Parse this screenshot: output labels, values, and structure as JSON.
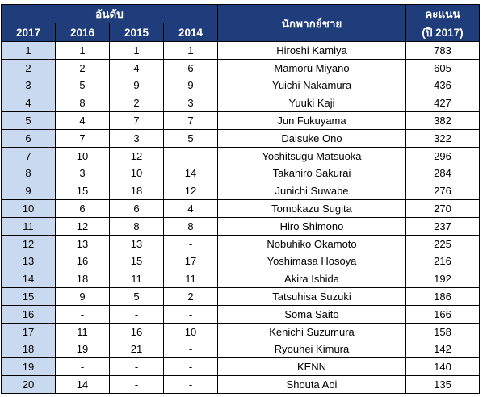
{
  "header": {
    "rank_group": "อันดับ",
    "voice_actor": "นักพากย์ชาย",
    "score_line1": "คะแนน",
    "score_line2": "(ปี 2017)",
    "years": [
      "2017",
      "2016",
      "2015",
      "2014"
    ]
  },
  "rows": [
    {
      "r2017": "1",
      "r2016": "1",
      "r2015": "1",
      "r2014": "1",
      "name": "Hiroshi Kamiya",
      "score": "783"
    },
    {
      "r2017": "2",
      "r2016": "2",
      "r2015": "4",
      "r2014": "6",
      "name": "Mamoru Miyano",
      "score": "605"
    },
    {
      "r2017": "3",
      "r2016": "5",
      "r2015": "9",
      "r2014": "9",
      "name": "Yuichi Nakamura",
      "score": "436"
    },
    {
      "r2017": "4",
      "r2016": "8",
      "r2015": "2",
      "r2014": "3",
      "name": "Yuuki Kaji",
      "score": "427"
    },
    {
      "r2017": "5",
      "r2016": "4",
      "r2015": "7",
      "r2014": "7",
      "name": "Jun Fukuyama",
      "score": "382"
    },
    {
      "r2017": "6",
      "r2016": "7",
      "r2015": "3",
      "r2014": "5",
      "name": "Daisuke Ono",
      "score": "322"
    },
    {
      "r2017": "7",
      "r2016": "10",
      "r2015": "12",
      "r2014": "-",
      "name": "Yoshitsugu Matsuoka",
      "score": "296"
    },
    {
      "r2017": "8",
      "r2016": "3",
      "r2015": "10",
      "r2014": "14",
      "name": "Takahiro Sakurai",
      "score": "284"
    },
    {
      "r2017": "9",
      "r2016": "15",
      "r2015": "18",
      "r2014": "12",
      "name": "Junichi Suwabe",
      "score": "276"
    },
    {
      "r2017": "10",
      "r2016": "6",
      "r2015": "6",
      "r2014": "4",
      "name": "Tomokazu Sugita",
      "score": "270"
    },
    {
      "r2017": "11",
      "r2016": "12",
      "r2015": "8",
      "r2014": "8",
      "name": "Hiro Shimono",
      "score": "237"
    },
    {
      "r2017": "12",
      "r2016": "13",
      "r2015": "13",
      "r2014": "-",
      "name": "Nobuhiko Okamoto",
      "score": "225"
    },
    {
      "r2017": "13",
      "r2016": "16",
      "r2015": "15",
      "r2014": "17",
      "name": "Yoshimasa Hosoya",
      "score": "216"
    },
    {
      "r2017": "14",
      "r2016": "18",
      "r2015": "11",
      "r2014": "11",
      "name": "Akira Ishida",
      "score": "192"
    },
    {
      "r2017": "15",
      "r2016": "9",
      "r2015": "5",
      "r2014": "2",
      "name": "Tatsuhisa Suzuki",
      "score": "186"
    },
    {
      "r2017": "16",
      "r2016": "-",
      "r2015": "-",
      "r2014": "-",
      "name": "Soma Saito",
      "score": "166"
    },
    {
      "r2017": "17",
      "r2016": "11",
      "r2015": "16",
      "r2014": "10",
      "name": "Kenichi Suzumura",
      "score": "158"
    },
    {
      "r2017": "18",
      "r2016": "19",
      "r2015": "21",
      "r2014": "-",
      "name": "Ryouhei Kimura",
      "score": "142"
    },
    {
      "r2017": "19",
      "r2016": "-",
      "r2015": "-",
      "r2014": "-",
      "name": "KENN",
      "score": "140"
    },
    {
      "r2017": "20",
      "r2016": "14",
      "r2015": "-",
      "r2014": "-",
      "name": "Shouta Aoi",
      "score": "135"
    }
  ],
  "colors": {
    "header_bg": "#1f3d7a",
    "header_text": "#ffffff",
    "rank2017_bg": "#c9daf0",
    "border": "#000000"
  }
}
